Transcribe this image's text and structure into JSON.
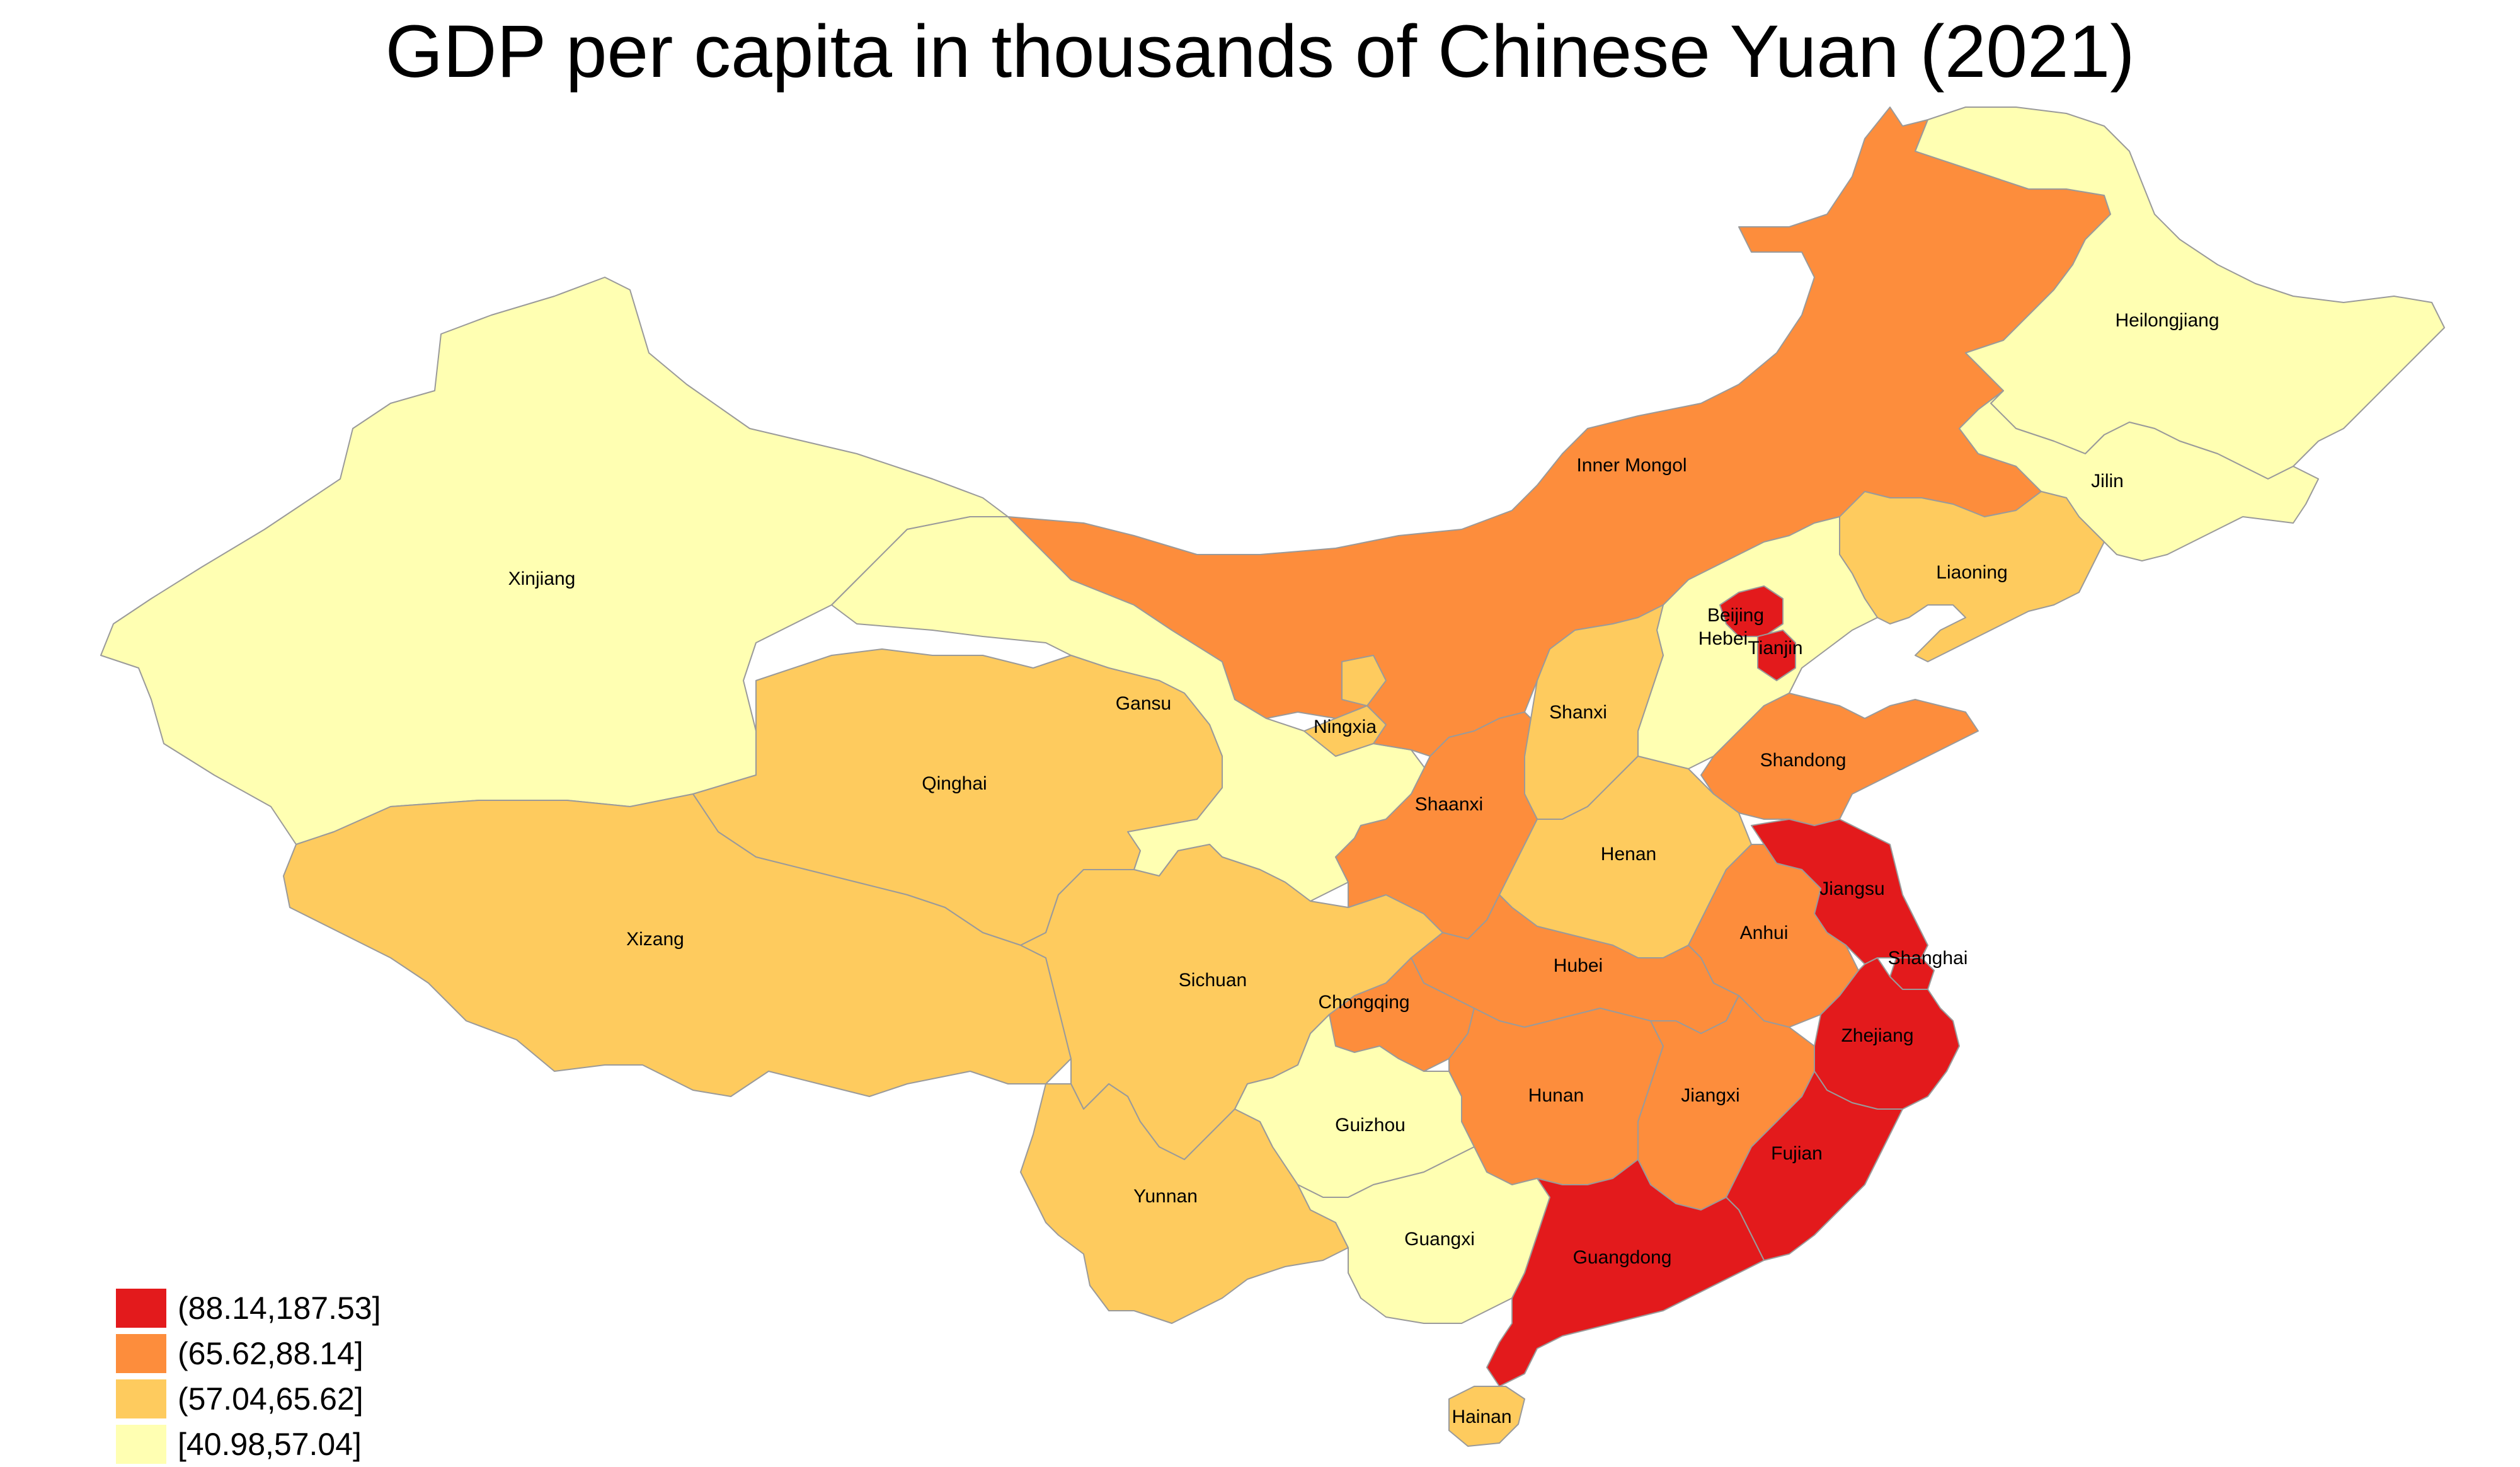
{
  "title": "GDP per capita in thousands of Chinese Yuan (2021)",
  "colors": {
    "class1": "#E31A1C",
    "class2": "#FD8D3C",
    "class3": "#FECB5E",
    "class4": "#FFFFB2",
    "border": "#9a9a9a",
    "sea": "#ffffff"
  },
  "legend": [
    {
      "label": "(88.14,187.53]",
      "class": "class1"
    },
    {
      "label": "(65.62,88.14]",
      "class": "class2"
    },
    {
      "label": "(57.04,65.62]",
      "class": "class3"
    },
    {
      "label": "[40.98,57.04]",
      "class": "class4"
    }
  ],
  "provinces": [
    {
      "name": "Heilongjiang",
      "class": "class4"
    },
    {
      "name": "Jilin",
      "class": "class4"
    },
    {
      "name": "Liaoning",
      "class": "class3"
    },
    {
      "name": "Inner Mongol",
      "class": "class2"
    },
    {
      "name": "Xinjiang",
      "class": "class4"
    },
    {
      "name": "Gansu",
      "class": "class4"
    },
    {
      "name": "Qinghai",
      "class": "class3"
    },
    {
      "name": "Xizang",
      "class": "class3"
    },
    {
      "name": "Ningxia",
      "class": "class3"
    },
    {
      "name": "Shaanxi",
      "class": "class2"
    },
    {
      "name": "Shanxi",
      "class": "class3"
    },
    {
      "name": "Hebei",
      "class": "class4"
    },
    {
      "name": "Beijing",
      "class": "class1"
    },
    {
      "name": "Tianjin",
      "class": "class1"
    },
    {
      "name": "Shandong",
      "class": "class2"
    },
    {
      "name": "Henan",
      "class": "class3"
    },
    {
      "name": "Jiangsu",
      "class": "class1"
    },
    {
      "name": "Anhui",
      "class": "class2"
    },
    {
      "name": "Shanghai",
      "class": "class1"
    },
    {
      "name": "Hubei",
      "class": "class2"
    },
    {
      "name": "Sichuan",
      "class": "class3"
    },
    {
      "name": "Chongqing",
      "class": "class2"
    },
    {
      "name": "Zhejiang",
      "class": "class1"
    },
    {
      "name": "Hunan",
      "class": "class2"
    },
    {
      "name": "Jiangxi",
      "class": "class2"
    },
    {
      "name": "Guizhou",
      "class": "class4"
    },
    {
      "name": "Fujian",
      "class": "class1"
    },
    {
      "name": "Yunnan",
      "class": "class3"
    },
    {
      "name": "Guangxi",
      "class": "class4"
    },
    {
      "name": "Guangdong",
      "class": "class1"
    },
    {
      "name": "Hainan",
      "class": "class3"
    }
  ]
}
